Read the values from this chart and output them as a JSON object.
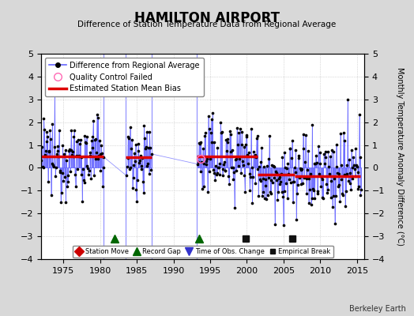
{
  "title": "HAMILTON AIRPORT",
  "subtitle": "Difference of Station Temperature Data from Regional Average",
  "ylabel": "Monthly Temperature Anomaly Difference (°C)",
  "xlabel_credit": "Berkeley Earth",
  "ylim": [
    -4,
    5
  ],
  "xlim": [
    1972.0,
    2016.0
  ],
  "yticks": [
    -4,
    -3,
    -2,
    -1,
    0,
    1,
    2,
    3,
    4,
    5
  ],
  "xticks": [
    1975,
    1980,
    1985,
    1990,
    1995,
    2000,
    2005,
    2010,
    2015
  ],
  "background_color": "#d8d8d8",
  "plot_bg_color": "#ffffff",
  "segments": [
    {
      "start": 1972.0,
      "end": 1980.5,
      "bias": 0.5
    },
    {
      "start": 1983.5,
      "end": 1987.0,
      "bias": 0.45
    },
    {
      "start": 1993.2,
      "end": 2001.5,
      "bias": 0.5
    },
    {
      "start": 2001.5,
      "end": 2006.5,
      "bias": -0.3
    },
    {
      "start": 2006.5,
      "end": 2015.5,
      "bias": -0.35
    }
  ],
  "gap_start1": 1980.5,
  "gap_end1": 1983.5,
  "gap_start2": 1987.0,
  "gap_end2": 1993.2,
  "record_gaps": [
    1982.0,
    1993.5
  ],
  "empirical_breaks": [
    1999.8,
    2006.2
  ],
  "time_obs_changes": [],
  "station_moves": [],
  "line_color": "#6666ff",
  "dot_color": "#000000",
  "bias_color": "#dd0000",
  "gap_color": "#006600",
  "break_color": "#111111",
  "obs_change_color": "#0000cc",
  "qc_fail_x": 1993.7,
  "qc_fail_y": 0.4,
  "vline_color": "#8888ff",
  "vline_positions": [
    1980.5,
    1983.5,
    1987.0,
    1993.2
  ]
}
